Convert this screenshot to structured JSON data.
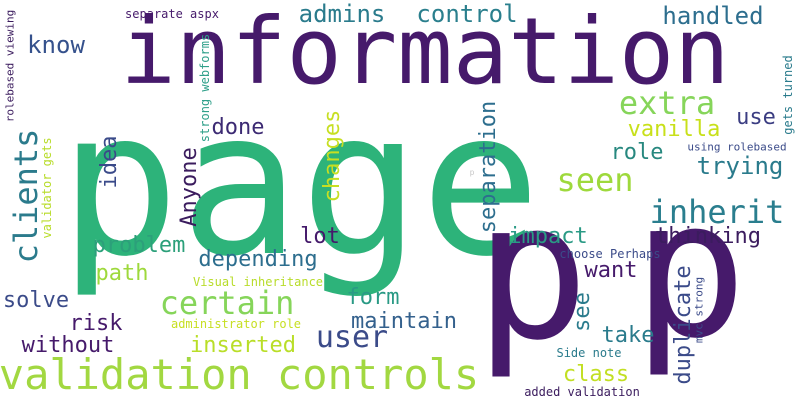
{
  "words": [
    {
      "text": "page",
      "color": "#2db37a"
    },
    {
      "text": "information",
      "color": "#461a6b"
    },
    {
      "text": "p",
      "color": "#461a6b"
    },
    {
      "text": "p",
      "color": "#461a6b"
    },
    {
      "text": "validation controls",
      "color": "#a2d841"
    },
    {
      "text": "clients",
      "color": "#2b7b8c"
    },
    {
      "text": "user",
      "color": "#3b4b89"
    },
    {
      "text": "certain",
      "color": "#86d55a"
    },
    {
      "text": "extra",
      "color": "#86d55a"
    },
    {
      "text": "inherit",
      "color": "#2a7e8e"
    },
    {
      "text": "seen",
      "color": "#9ed93c"
    },
    {
      "text": "admins",
      "color": "#2a7b8c"
    },
    {
      "text": "control",
      "color": "#2a7f8d"
    },
    {
      "text": "handled",
      "color": "#2d6e8e"
    },
    {
      "text": "know",
      "color": "#35518c"
    },
    {
      "text": "done",
      "color": "#3c2a73"
    },
    {
      "text": "vanilla",
      "color": "#c8e01a"
    },
    {
      "text": "use",
      "color": "#3b3d82"
    },
    {
      "text": "role",
      "color": "#27887f"
    },
    {
      "text": "trying",
      "color": "#2a7b8c"
    },
    {
      "text": "Anyone",
      "color": "#3b1c5e"
    },
    {
      "text": "changes",
      "color": "#c7df22"
    },
    {
      "text": "idea",
      "color": "#3a4a89"
    },
    {
      "text": "separation",
      "color": "#2d6e8e"
    },
    {
      "text": "problem",
      "color": "#2ca07a"
    },
    {
      "text": "lot",
      "color": "#451a6b"
    },
    {
      "text": "impact",
      "color": "#2a9a85"
    },
    {
      "text": "thinking",
      "color": "#3b1c5e"
    },
    {
      "text": "depending",
      "color": "#2d6e8e"
    },
    {
      "text": "path",
      "color": "#9ed93c"
    },
    {
      "text": "want",
      "color": "#461a6b"
    },
    {
      "text": "solve",
      "color": "#3b4b89"
    },
    {
      "text": "form",
      "color": "#2a9a85"
    },
    {
      "text": "maintain",
      "color": "#34618d"
    },
    {
      "text": "risk",
      "color": "#461a6b"
    },
    {
      "text": "take",
      "color": "#2a7b8c"
    },
    {
      "text": "without",
      "color": "#461a6b"
    },
    {
      "text": "inserted",
      "color": "#b9de28"
    },
    {
      "text": "class",
      "color": "#c2df23"
    },
    {
      "text": "see",
      "color": "#2a7b8c"
    },
    {
      "text": "duplicate",
      "color": "#3b4b89"
    },
    {
      "text": "separate aspx",
      "color": "#461a6b"
    },
    {
      "text": "strong webforms",
      "color": "#2fa08a"
    },
    {
      "text": "validator gets",
      "color": "#b8dc2a"
    },
    {
      "text": "rolebased viewing",
      "color": "#3b1c5e"
    },
    {
      "text": "gets turned",
      "color": "#2a7b8c"
    },
    {
      "text": "using rolebased",
      "color": "#3b4b89"
    },
    {
      "text": "choose Perhaps",
      "color": "#3b4b89"
    },
    {
      "text": "Visual inheritance",
      "color": "#b8dc2a"
    },
    {
      "text": "administrator role",
      "color": "#c7df22"
    },
    {
      "text": "mvc strong",
      "color": "#3b4b89"
    },
    {
      "text": "Side note",
      "color": "#2a7b8c"
    },
    {
      "text": "added validation",
      "color": "#3b1c5e"
    },
    {
      "text": "p",
      "color": "#c8c8c8"
    }
  ]
}
